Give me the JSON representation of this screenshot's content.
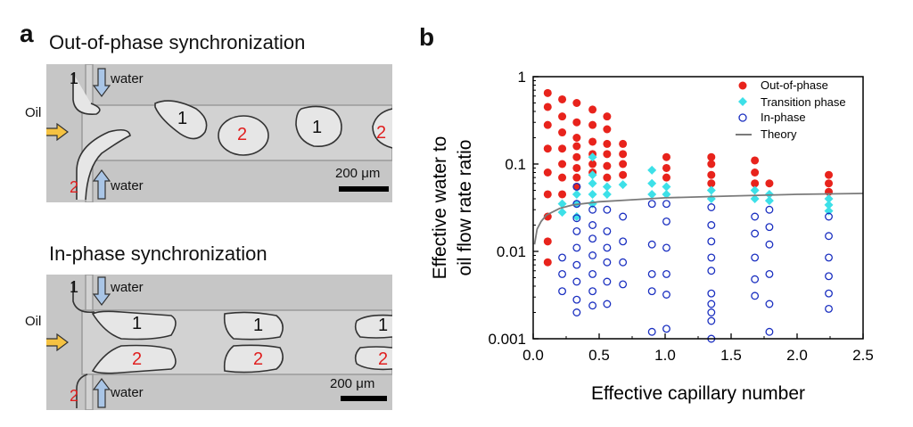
{
  "panel_a": {
    "letter": "a",
    "top": {
      "title": "Out-of-phase synchronization",
      "oil_label": "Oil",
      "water_top": "water",
      "water_bottom": "water",
      "scale": "200 μm",
      "inlet_top_num": "1",
      "inlet_bottom_num": "2",
      "droplets": [
        "1",
        "2",
        "1",
        "2"
      ]
    },
    "bottom": {
      "title": "In-phase synchronization",
      "oil_label": "Oil",
      "water_top": "water",
      "water_bottom": "water",
      "scale": "200 μm",
      "inlet_top_num": "1",
      "inlet_bottom_num": "2",
      "pairs": [
        {
          "upper": "1",
          "lower": "2"
        },
        {
          "upper": "1",
          "lower": "2"
        },
        {
          "upper": "1",
          "lower": "2"
        }
      ]
    },
    "colors": {
      "number_black": "#111111",
      "number_red": "#e02020",
      "oil_arrow": "#f5c242",
      "water_arrow": "#a9c5e6"
    }
  },
  "panel_b": {
    "letter": "b"
  },
  "chart_data": {
    "type": "scatter",
    "xlabel": "Effective capillary number",
    "ylabel_line1": "Effective water to",
    "ylabel_line2": "oil flow rate ratio",
    "xlim": [
      0,
      2.5
    ],
    "ylim": [
      0.001,
      1
    ],
    "yscale": "log",
    "xticks": [
      0.0,
      0.5,
      1.0,
      1.5,
      2.0,
      2.5
    ],
    "xtick_labels": [
      "0.0",
      "0.5",
      "1.0",
      "1.5",
      "2.0",
      "2.5"
    ],
    "yticks": [
      0.001,
      0.01,
      0.1,
      1
    ],
    "ytick_labels": [
      "0.001",
      "0.01",
      "0.1",
      "1"
    ],
    "legend_position": "top-right",
    "series": [
      {
        "name": "Out-of-phase",
        "marker": "circle-filled",
        "color": "#e8231c",
        "points": [
          [
            0.11,
            0.65
          ],
          [
            0.11,
            0.45
          ],
          [
            0.11,
            0.28
          ],
          [
            0.11,
            0.15
          ],
          [
            0.11,
            0.08
          ],
          [
            0.11,
            0.045
          ],
          [
            0.11,
            0.025
          ],
          [
            0.11,
            0.013
          ],
          [
            0.11,
            0.0075
          ],
          [
            0.22,
            0.55
          ],
          [
            0.22,
            0.35
          ],
          [
            0.22,
            0.23
          ],
          [
            0.22,
            0.15
          ],
          [
            0.22,
            0.1
          ],
          [
            0.22,
            0.07
          ],
          [
            0.22,
            0.045
          ],
          [
            0.33,
            0.5
          ],
          [
            0.33,
            0.3
          ],
          [
            0.33,
            0.2
          ],
          [
            0.33,
            0.16
          ],
          [
            0.33,
            0.12
          ],
          [
            0.33,
            0.09
          ],
          [
            0.33,
            0.07
          ],
          [
            0.33,
            0.055
          ],
          [
            0.45,
            0.42
          ],
          [
            0.45,
            0.28
          ],
          [
            0.45,
            0.18
          ],
          [
            0.45,
            0.13
          ],
          [
            0.45,
            0.1
          ],
          [
            0.45,
            0.08
          ],
          [
            0.56,
            0.35
          ],
          [
            0.56,
            0.25
          ],
          [
            0.56,
            0.17
          ],
          [
            0.56,
            0.13
          ],
          [
            0.56,
            0.095
          ],
          [
            0.56,
            0.07
          ],
          [
            0.68,
            0.17
          ],
          [
            0.68,
            0.13
          ],
          [
            0.68,
            0.1
          ],
          [
            0.68,
            0.075
          ],
          [
            1.01,
            0.12
          ],
          [
            1.01,
            0.09
          ],
          [
            1.01,
            0.07
          ],
          [
            1.35,
            0.12
          ],
          [
            1.35,
            0.1
          ],
          [
            1.35,
            0.075
          ],
          [
            1.35,
            0.06
          ],
          [
            1.68,
            0.11
          ],
          [
            1.68,
            0.08
          ],
          [
            1.68,
            0.06
          ],
          [
            1.79,
            0.06
          ],
          [
            2.24,
            0.075
          ],
          [
            2.24,
            0.06
          ],
          [
            2.24,
            0.048
          ]
        ]
      },
      {
        "name": "Transition phase",
        "marker": "diamond",
        "color": "#3de0e8",
        "points": [
          [
            0.22,
            0.035
          ],
          [
            0.22,
            0.028
          ],
          [
            0.33,
            0.045
          ],
          [
            0.33,
            0.035
          ],
          [
            0.33,
            0.025
          ],
          [
            0.45,
            0.12
          ],
          [
            0.45,
            0.075
          ],
          [
            0.45,
            0.06
          ],
          [
            0.45,
            0.045
          ],
          [
            0.45,
            0.035
          ],
          [
            0.56,
            0.055
          ],
          [
            0.56,
            0.045
          ],
          [
            0.68,
            0.058
          ],
          [
            0.9,
            0.085
          ],
          [
            0.9,
            0.06
          ],
          [
            0.9,
            0.045
          ],
          [
            1.01,
            0.055
          ],
          [
            1.01,
            0.045
          ],
          [
            1.35,
            0.05
          ],
          [
            1.35,
            0.04
          ],
          [
            1.68,
            0.05
          ],
          [
            1.68,
            0.04
          ],
          [
            1.79,
            0.045
          ],
          [
            1.79,
            0.038
          ],
          [
            2.24,
            0.04
          ],
          [
            2.24,
            0.034
          ],
          [
            2.24,
            0.029
          ]
        ]
      },
      {
        "name": "In-phase",
        "marker": "circle-open",
        "color": "#1a2fc0",
        "points": [
          [
            0.22,
            0.0085
          ],
          [
            0.22,
            0.0055
          ],
          [
            0.22,
            0.0035
          ],
          [
            0.33,
            0.055
          ],
          [
            0.33,
            0.035
          ],
          [
            0.33,
            0.024
          ],
          [
            0.33,
            0.017
          ],
          [
            0.33,
            0.011
          ],
          [
            0.33,
            0.007
          ],
          [
            0.33,
            0.0045
          ],
          [
            0.33,
            0.0028
          ],
          [
            0.33,
            0.002
          ],
          [
            0.45,
            0.03
          ],
          [
            0.45,
            0.02
          ],
          [
            0.45,
            0.014
          ],
          [
            0.45,
            0.009
          ],
          [
            0.45,
            0.0055
          ],
          [
            0.45,
            0.0035
          ],
          [
            0.45,
            0.0024
          ],
          [
            0.56,
            0.03
          ],
          [
            0.56,
            0.017
          ],
          [
            0.56,
            0.011
          ],
          [
            0.56,
            0.0075
          ],
          [
            0.56,
            0.0045
          ],
          [
            0.56,
            0.0025
          ],
          [
            0.68,
            0.025
          ],
          [
            0.68,
            0.013
          ],
          [
            0.68,
            0.0075
          ],
          [
            0.68,
            0.0042
          ],
          [
            0.9,
            0.035
          ],
          [
            0.9,
            0.012
          ],
          [
            0.9,
            0.0055
          ],
          [
            0.9,
            0.0035
          ],
          [
            0.9,
            0.0012
          ],
          [
            1.01,
            0.035
          ],
          [
            1.01,
            0.022
          ],
          [
            1.01,
            0.011
          ],
          [
            1.01,
            0.0055
          ],
          [
            1.01,
            0.0032
          ],
          [
            1.01,
            0.0013
          ],
          [
            1.35,
            0.032
          ],
          [
            1.35,
            0.02
          ],
          [
            1.35,
            0.013
          ],
          [
            1.35,
            0.0085
          ],
          [
            1.35,
            0.006
          ],
          [
            1.35,
            0.0033
          ],
          [
            1.35,
            0.0025
          ],
          [
            1.35,
            0.002
          ],
          [
            1.35,
            0.0016
          ],
          [
            1.35,
            0.001
          ],
          [
            1.68,
            0.025
          ],
          [
            1.68,
            0.016
          ],
          [
            1.68,
            0.0085
          ],
          [
            1.68,
            0.0048
          ],
          [
            1.68,
            0.0031
          ],
          [
            1.79,
            0.03
          ],
          [
            1.79,
            0.019
          ],
          [
            1.79,
            0.012
          ],
          [
            1.79,
            0.0055
          ],
          [
            1.79,
            0.0025
          ],
          [
            1.79,
            0.0012
          ],
          [
            2.24,
            0.025
          ],
          [
            2.24,
            0.015
          ],
          [
            2.24,
            0.0085
          ],
          [
            2.24,
            0.0052
          ],
          [
            2.24,
            0.0033
          ],
          [
            2.24,
            0.0022
          ]
        ]
      },
      {
        "name": "Theory",
        "marker": "line",
        "color": "#7a7a7a",
        "points": [
          [
            0.01,
            0.012
          ],
          [
            0.03,
            0.018
          ],
          [
            0.06,
            0.022
          ],
          [
            0.1,
            0.026
          ],
          [
            0.2,
            0.031
          ],
          [
            0.3,
            0.034
          ],
          [
            0.5,
            0.037
          ],
          [
            0.75,
            0.039
          ],
          [
            1.0,
            0.041
          ],
          [
            1.5,
            0.043
          ],
          [
            2.0,
            0.045
          ],
          [
            2.5,
            0.046
          ]
        ]
      }
    ]
  }
}
